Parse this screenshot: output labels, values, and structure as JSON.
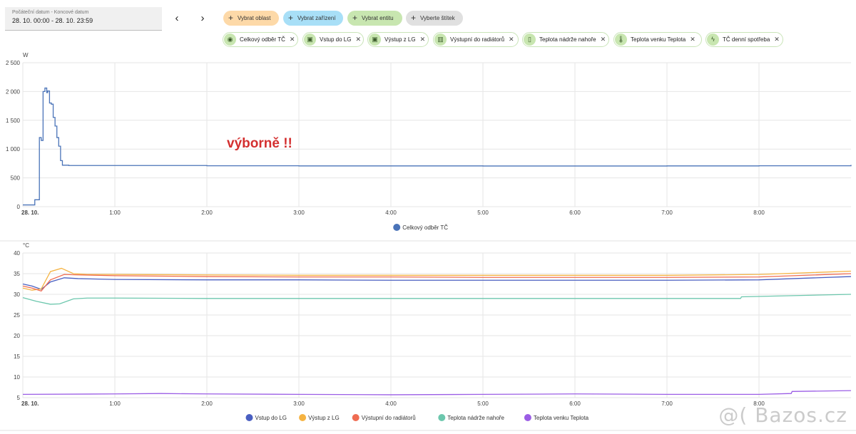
{
  "date_picker": {
    "label": "Počáteční datum - Koncové datum",
    "value": "28. 10. 00:00 - 28. 10. 23:59"
  },
  "nav": {
    "prev_icon": "chevron-left-icon",
    "next_icon": "chevron-right-icon"
  },
  "target_buttons": [
    {
      "label": "Vybrat oblast",
      "color": "#fdd9a8"
    },
    {
      "label": "Vybrat zařízení",
      "color": "#a8dff7"
    },
    {
      "label": "Vybrat entitu",
      "color": "#c8e6b0"
    },
    {
      "label": "Vyberte štítek",
      "color": "#e0e0e0"
    }
  ],
  "entity_chips": [
    {
      "label": "Celkový odběr TČ",
      "icon": "eye-icon"
    },
    {
      "label": "Vstup do LG",
      "icon": "device-icon"
    },
    {
      "label": "Výstup z LG",
      "icon": "device-icon"
    },
    {
      "label": "Výstupní do radiátorů",
      "icon": "radiator-icon"
    },
    {
      "label": "Teplota nádrže nahoře",
      "icon": "water-heater-icon"
    },
    {
      "label": "Teplota venku Teplota",
      "icon": "thermometer-icon"
    },
    {
      "label": "TČ denní spotřeba",
      "icon": "flash-icon"
    }
  ],
  "annotation": "výborně !!",
  "watermark": "@( Bazos.cz",
  "chart_data": [
    {
      "type": "line",
      "ylabel": "W",
      "ylim": [
        0,
        2500
      ],
      "yticks": [
        0,
        500,
        1000,
        1500,
        2000,
        2500
      ],
      "ytick_labels": [
        "0",
        "500",
        "1 000",
        "1 500",
        "2 000",
        "2 500"
      ],
      "xlim": [
        0,
        9.0
      ],
      "xticks": [
        0,
        1,
        2,
        3,
        4,
        5,
        6,
        7,
        8
      ],
      "xtick_labels": [
        "28. 10.",
        "1:00",
        "2:00",
        "3:00",
        "4:00",
        "5:00",
        "6:00",
        "7:00",
        "8:00"
      ],
      "grid": true,
      "legend_position": "bottom-center",
      "series": [
        {
          "name": "Celkový odběr TČ",
          "color": "#4a73b8",
          "x": [
            0,
            0.12,
            0.13,
            0.17,
            0.18,
            0.2,
            0.22,
            0.24,
            0.26,
            0.27,
            0.29,
            0.31,
            0.33,
            0.35,
            0.37,
            0.39,
            0.41,
            0.43,
            0.5,
            1,
            2,
            3,
            4,
            5,
            6,
            7,
            8,
            9.0
          ],
          "y": [
            30,
            30,
            120,
            120,
            1200,
            1150,
            2000,
            2060,
            1980,
            2010,
            1800,
            1780,
            1550,
            1400,
            1200,
            1050,
            800,
            720,
            715,
            715,
            710,
            708,
            708,
            706,
            706,
            708,
            710,
            725
          ]
        }
      ]
    },
    {
      "type": "line",
      "ylabel": "°C",
      "ylim": [
        5,
        40
      ],
      "yticks": [
        5,
        10,
        15,
        20,
        25,
        30,
        35,
        40
      ],
      "ytick_labels": [
        "5",
        "10",
        "15",
        "20",
        "25",
        "30",
        "35",
        "40"
      ],
      "xlim": [
        0,
        9.0
      ],
      "xticks": [
        0,
        1,
        2,
        3,
        4,
        5,
        6,
        7,
        8
      ],
      "xtick_labels": [
        "28. 10.",
        "1:00",
        "2:00",
        "3:00",
        "4:00",
        "5:00",
        "6:00",
        "7:00",
        "8:00"
      ],
      "grid": true,
      "legend_position": "bottom-center",
      "series": [
        {
          "name": "Vstup do LG",
          "color": "#4a5fc1",
          "x": [
            0,
            0.1,
            0.2,
            0.3,
            0.45,
            0.6,
            1,
            2,
            3,
            4,
            5,
            6,
            7,
            8,
            9.0
          ],
          "y": [
            32.5,
            32,
            31.2,
            33,
            34,
            33.8,
            33.6,
            33.5,
            33.5,
            33.4,
            33.4,
            33.4,
            33.4,
            33.5,
            34.3
          ]
        },
        {
          "name": "Výstup z LG",
          "color": "#f5b342",
          "x": [
            0,
            0.1,
            0.2,
            0.3,
            0.42,
            0.55,
            0.7,
            1,
            2,
            3,
            4,
            5,
            6,
            7,
            8,
            9.0
          ],
          "y": [
            31.5,
            31,
            31.3,
            35.5,
            36.3,
            35,
            34.8,
            34.8,
            34.7,
            34.6,
            34.6,
            34.6,
            34.6,
            34.6,
            34.8,
            35.6
          ]
        },
        {
          "name": "Výstupní do radiátorů",
          "color": "#ef6c52",
          "x": [
            0,
            0.1,
            0.2,
            0.3,
            0.45,
            0.6,
            1,
            2,
            3,
            4,
            5,
            6,
            7,
            8,
            9.0
          ],
          "y": [
            32,
            31.5,
            30.8,
            33.5,
            34.8,
            34.7,
            34.5,
            34.3,
            34.2,
            34.2,
            34.1,
            34.1,
            34.1,
            34.2,
            35.0
          ]
        },
        {
          "name": "Teplota nádrže nahoře",
          "color": "#6cc7ad",
          "x": [
            0,
            0.15,
            0.3,
            0.4,
            0.55,
            0.7,
            1,
            2,
            3,
            4,
            5,
            6,
            7,
            7.8,
            7.81,
            9.0
          ],
          "y": [
            29.2,
            28.3,
            27.6,
            27.7,
            28.9,
            29.1,
            29.1,
            29.0,
            29.0,
            29.0,
            29.0,
            29.0,
            29.0,
            29.0,
            29.4,
            30.0
          ]
        },
        {
          "name": "Teplota venku Teplota",
          "color": "#9b5de5",
          "x": [
            0,
            1,
            1.5,
            2,
            3,
            4,
            5,
            6,
            7,
            8,
            8.35,
            8.36,
            9.0
          ],
          "y": [
            5.8,
            5.9,
            6.0,
            5.9,
            5.8,
            5.7,
            5.8,
            5.9,
            5.8,
            5.8,
            6.0,
            6.5,
            6.7
          ]
        }
      ]
    }
  ]
}
